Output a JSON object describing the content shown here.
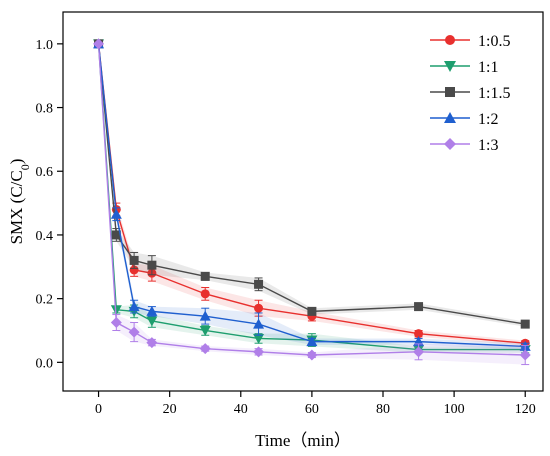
{
  "chart_data": {
    "type": "line",
    "title": "",
    "xlabel": "Time（min）",
    "ylabel_main": "SMX (C/C",
    "ylabel_sub": "0",
    "ylabel_close": ")",
    "xlim": [
      -10,
      125
    ],
    "ylim": [
      -0.09,
      1.1
    ],
    "xticks": [
      0,
      20,
      40,
      60,
      80,
      100,
      120
    ],
    "yticks": [
      0.0,
      0.2,
      0.4,
      0.6,
      0.8,
      1.0
    ],
    "ytick_labels": [
      "0.0",
      "0.2",
      "0.4",
      "0.6",
      "0.8",
      "1.0"
    ],
    "legend_position": "top-right",
    "x": [
      0,
      5,
      10,
      15,
      30,
      45,
      60,
      90,
      120
    ],
    "series": [
      {
        "name": "1:0.5",
        "color": "#e8302e",
        "marker": "circle",
        "values": [
          1.0,
          0.48,
          0.29,
          0.28,
          0.215,
          0.17,
          0.145,
          0.09,
          0.06
        ],
        "errors": [
          0,
          0.02,
          0.02,
          0.025,
          0.02,
          0.025,
          0.015,
          0.01,
          0.008
        ]
      },
      {
        "name": "1:1",
        "color": "#1e9e6e",
        "marker": "triangle-down",
        "values": [
          1.0,
          0.165,
          0.16,
          0.13,
          0.1,
          0.075,
          0.07,
          0.04,
          0.04
        ],
        "errors": [
          0,
          0.01,
          0.02,
          0.02,
          0.015,
          0.015,
          0.02,
          0.01,
          0.01
        ]
      },
      {
        "name": "1:1.5",
        "color": "#4a4a4a",
        "marker": "square",
        "values": [
          1.0,
          0.4,
          0.32,
          0.305,
          0.27,
          0.245,
          0.16,
          0.175,
          0.12
        ],
        "errors": [
          0,
          0.02,
          0.025,
          0.03,
          0.012,
          0.02,
          0.01,
          0.01,
          0.008
        ]
      },
      {
        "name": "1:2",
        "color": "#1f5fcf",
        "marker": "triangle-up",
        "values": [
          1.0,
          0.465,
          0.175,
          0.16,
          0.145,
          0.12,
          0.065,
          0.065,
          0.05
        ],
        "errors": [
          0,
          0.02,
          0.02,
          0.015,
          0.025,
          0.035,
          0.01,
          0.01,
          0.01
        ]
      },
      {
        "name": "1:3",
        "color": "#b07fe8",
        "marker": "diamond",
        "values": [
          1.0,
          0.125,
          0.095,
          0.062,
          0.043,
          0.033,
          0.023,
          0.033,
          0.023
        ],
        "errors": [
          0,
          0.025,
          0.03,
          0.01,
          0.008,
          0.01,
          0.008,
          0.025,
          0.03
        ]
      }
    ]
  }
}
